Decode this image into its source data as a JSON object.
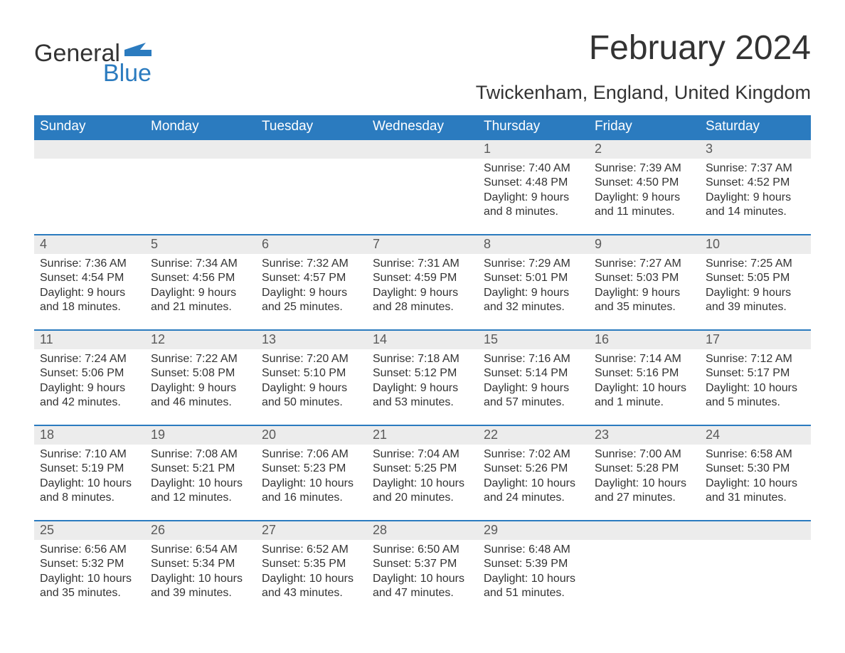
{
  "logo": {
    "word1": "General",
    "word2": "Blue"
  },
  "title": "February 2024",
  "location": "Twickenham, England, United Kingdom",
  "colors": {
    "header_bg": "#2b7bbf",
    "header_text": "#ffffff",
    "daynum_bg": "#ececec",
    "row_border": "#2b7bbf",
    "body_text": "#333333",
    "logo_blue": "#2b7bbf"
  },
  "weekdays": [
    "Sunday",
    "Monday",
    "Tuesday",
    "Wednesday",
    "Thursday",
    "Friday",
    "Saturday"
  ],
  "weeks": [
    [
      null,
      null,
      null,
      null,
      {
        "n": "1",
        "sr": "7:40 AM",
        "ss": "4:48 PM",
        "dl": "9 hours and 8 minutes."
      },
      {
        "n": "2",
        "sr": "7:39 AM",
        "ss": "4:50 PM",
        "dl": "9 hours and 11 minutes."
      },
      {
        "n": "3",
        "sr": "7:37 AM",
        "ss": "4:52 PM",
        "dl": "9 hours and 14 minutes."
      }
    ],
    [
      {
        "n": "4",
        "sr": "7:36 AM",
        "ss": "4:54 PM",
        "dl": "9 hours and 18 minutes."
      },
      {
        "n": "5",
        "sr": "7:34 AM",
        "ss": "4:56 PM",
        "dl": "9 hours and 21 minutes."
      },
      {
        "n": "6",
        "sr": "7:32 AM",
        "ss": "4:57 PM",
        "dl": "9 hours and 25 minutes."
      },
      {
        "n": "7",
        "sr": "7:31 AM",
        "ss": "4:59 PM",
        "dl": "9 hours and 28 minutes."
      },
      {
        "n": "8",
        "sr": "7:29 AM",
        "ss": "5:01 PM",
        "dl": "9 hours and 32 minutes."
      },
      {
        "n": "9",
        "sr": "7:27 AM",
        "ss": "5:03 PM",
        "dl": "9 hours and 35 minutes."
      },
      {
        "n": "10",
        "sr": "7:25 AM",
        "ss": "5:05 PM",
        "dl": "9 hours and 39 minutes."
      }
    ],
    [
      {
        "n": "11",
        "sr": "7:24 AM",
        "ss": "5:06 PM",
        "dl": "9 hours and 42 minutes."
      },
      {
        "n": "12",
        "sr": "7:22 AM",
        "ss": "5:08 PM",
        "dl": "9 hours and 46 minutes."
      },
      {
        "n": "13",
        "sr": "7:20 AM",
        "ss": "5:10 PM",
        "dl": "9 hours and 50 minutes."
      },
      {
        "n": "14",
        "sr": "7:18 AM",
        "ss": "5:12 PM",
        "dl": "9 hours and 53 minutes."
      },
      {
        "n": "15",
        "sr": "7:16 AM",
        "ss": "5:14 PM",
        "dl": "9 hours and 57 minutes."
      },
      {
        "n": "16",
        "sr": "7:14 AM",
        "ss": "5:16 PM",
        "dl": "10 hours and 1 minute."
      },
      {
        "n": "17",
        "sr": "7:12 AM",
        "ss": "5:17 PM",
        "dl": "10 hours and 5 minutes."
      }
    ],
    [
      {
        "n": "18",
        "sr": "7:10 AM",
        "ss": "5:19 PM",
        "dl": "10 hours and 8 minutes."
      },
      {
        "n": "19",
        "sr": "7:08 AM",
        "ss": "5:21 PM",
        "dl": "10 hours and 12 minutes."
      },
      {
        "n": "20",
        "sr": "7:06 AM",
        "ss": "5:23 PM",
        "dl": "10 hours and 16 minutes."
      },
      {
        "n": "21",
        "sr": "7:04 AM",
        "ss": "5:25 PM",
        "dl": "10 hours and 20 minutes."
      },
      {
        "n": "22",
        "sr": "7:02 AM",
        "ss": "5:26 PM",
        "dl": "10 hours and 24 minutes."
      },
      {
        "n": "23",
        "sr": "7:00 AM",
        "ss": "5:28 PM",
        "dl": "10 hours and 27 minutes."
      },
      {
        "n": "24",
        "sr": "6:58 AM",
        "ss": "5:30 PM",
        "dl": "10 hours and 31 minutes."
      }
    ],
    [
      {
        "n": "25",
        "sr": "6:56 AM",
        "ss": "5:32 PM",
        "dl": "10 hours and 35 minutes."
      },
      {
        "n": "26",
        "sr": "6:54 AM",
        "ss": "5:34 PM",
        "dl": "10 hours and 39 minutes."
      },
      {
        "n": "27",
        "sr": "6:52 AM",
        "ss": "5:35 PM",
        "dl": "10 hours and 43 minutes."
      },
      {
        "n": "28",
        "sr": "6:50 AM",
        "ss": "5:37 PM",
        "dl": "10 hours and 47 minutes."
      },
      {
        "n": "29",
        "sr": "6:48 AM",
        "ss": "5:39 PM",
        "dl": "10 hours and 51 minutes."
      },
      null,
      null
    ]
  ],
  "labels": {
    "sunrise": "Sunrise: ",
    "sunset": "Sunset: ",
    "daylight": "Daylight: "
  }
}
